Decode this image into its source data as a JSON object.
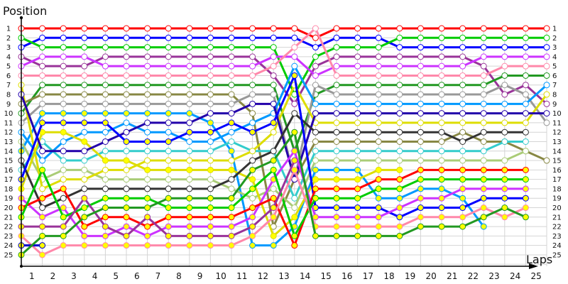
{
  "chart_data": {
    "type": "line",
    "ylabel": "Position",
    "xlabel": "Laps",
    "x": [
      0,
      1,
      2,
      3,
      4,
      5,
      6,
      7,
      8,
      9,
      10,
      11,
      12,
      13,
      14,
      15,
      16,
      17,
      18,
      19,
      20,
      21,
      22,
      23,
      24,
      25
    ],
    "x_tick_labels": [
      "1",
      "2",
      "3",
      "4",
      "5",
      "6",
      "7",
      "8",
      "9",
      "10",
      "11",
      "12",
      "13",
      "14",
      "15",
      "16",
      "17",
      "18",
      "19",
      "20",
      "21",
      "22",
      "23",
      "24",
      "25"
    ],
    "y_tick_labels": [
      "1",
      "2",
      "3",
      "4",
      "5",
      "6",
      "7",
      "8",
      "9",
      "10",
      "11",
      "12",
      "13",
      "14",
      "15",
      "16",
      "17",
      "18",
      "19",
      "20",
      "21",
      "22",
      "23",
      "24",
      "25"
    ],
    "ylim": [
      1,
      25
    ],
    "y_inverted": true,
    "grid": true,
    "legend": "none",
    "series": [
      {
        "color": "#ff0000",
        "marker": "#ffffff",
        "values": [
          1,
          1,
          1,
          1,
          1,
          1,
          1,
          1,
          1,
          1,
          1,
          1,
          1,
          1,
          2,
          1,
          1,
          1,
          1,
          1,
          1,
          1,
          1,
          1,
          1,
          1
        ]
      },
      {
        "color": "#0000ff",
        "marker": "#ffffff",
        "values": [
          3,
          2,
          2,
          2,
          2,
          2,
          2,
          2,
          2,
          2,
          2,
          2,
          2,
          2,
          3,
          2,
          2,
          2,
          3,
          3,
          3,
          3,
          3,
          3,
          3,
          3
        ]
      },
      {
        "color": "#00cc00",
        "marker": "#ffffff",
        "values": [
          2,
          3,
          3,
          3,
          3,
          3,
          3,
          3,
          3,
          3,
          3,
          3,
          3,
          8,
          4,
          3,
          3,
          3,
          2,
          2,
          2,
          2,
          2,
          2,
          2,
          2
        ]
      },
      {
        "color": "#993399",
        "marker": "#ffffff",
        "values": [
          4,
          5,
          5,
          5,
          4,
          4,
          4,
          4,
          4,
          4,
          4,
          4,
          6,
          9,
          5,
          4,
          4,
          4,
          4,
          4,
          4,
          4,
          5,
          8,
          7,
          9
        ]
      },
      {
        "color": "#cc33ff",
        "marker": "#ffffff",
        "values": [
          5,
          4,
          4,
          4,
          5,
          5,
          5,
          5,
          5,
          5,
          5,
          5,
          4,
          4,
          6,
          5,
          5,
          5,
          5,
          5,
          5,
          5,
          4,
          4,
          4,
          4
        ]
      },
      {
        "color": "#ff88aa",
        "marker": "#ffffff",
        "values": [
          6,
          6,
          6,
          6,
          6,
          6,
          6,
          6,
          6,
          6,
          6,
          6,
          5,
          3,
          1,
          6,
          6,
          6,
          6,
          6,
          6,
          6,
          6,
          5,
          5,
          5
        ]
      },
      {
        "color": "#229922",
        "marker": "#ffffff",
        "values": [
          10,
          7,
          7,
          7,
          7,
          7,
          7,
          7,
          7,
          7,
          7,
          7,
          7,
          14,
          8,
          7,
          7,
          7,
          7,
          7,
          7,
          7,
          7,
          6,
          6,
          6
        ]
      },
      {
        "color": "#888844",
        "marker": "#ffffff",
        "values": [
          9,
          8,
          8,
          8,
          8,
          8,
          8,
          8,
          8,
          8,
          8,
          10,
          22,
          17,
          13,
          13,
          13,
          13,
          13,
          13,
          13,
          12,
          13,
          13,
          14,
          15
        ]
      },
      {
        "color": "#999999",
        "marker": "#ffffff",
        "values": [
          11,
          9,
          9,
          9,
          9,
          9,
          9,
          9,
          9,
          9,
          9,
          8,
          8,
          17,
          7,
          8,
          8,
          8,
          8,
          8,
          8,
          8,
          8,
          7,
          8,
          11
        ]
      },
      {
        "color": "#0099ff",
        "marker": "#ffffff",
        "values": [
          12,
          15,
          13,
          12,
          12,
          11,
          12,
          12,
          13,
          13,
          12,
          11,
          10,
          5,
          9,
          9,
          9,
          9,
          9,
          9,
          9,
          9,
          9,
          9,
          9,
          7
        ]
      },
      {
        "color": "#0099ff",
        "marker": "#ffff00",
        "values": [
          14,
          10,
          10,
          10,
          10,
          10,
          10,
          10,
          10,
          11,
          14,
          24,
          24,
          22,
          16,
          16,
          16,
          19,
          19,
          18,
          18,
          19,
          22,
          null,
          null,
          null
        ]
      },
      {
        "color": "#33cccc",
        "marker": "#ffffff",
        "values": [
          16,
          13,
          15,
          15,
          14,
          14,
          14,
          14,
          14,
          14,
          13,
          14,
          14,
          19,
          14,
          14,
          14,
          14,
          14,
          14,
          14,
          14,
          14,
          13,
          13,
          null
        ]
      },
      {
        "color": "#aacc77",
        "marker": "#ffffff",
        "values": [
          13,
          17,
          16,
          16,
          17,
          17,
          17,
          17,
          17,
          17,
          18,
          19,
          18,
          20,
          15,
          15,
          15,
          15,
          15,
          15,
          15,
          15,
          15,
          15,
          14,
          null
        ]
      },
      {
        "color": "#dddd00",
        "marker": "#ffffff",
        "values": [
          7,
          18,
          17,
          17,
          16,
          16,
          15,
          15,
          15,
          15,
          15,
          14,
          12,
          7,
          11,
          11,
          11,
          11,
          11,
          11,
          11,
          11,
          11,
          11,
          11,
          8
        ]
      },
      {
        "color": "#dddd00",
        "marker": "#ffff00",
        "values": [
          18,
          12,
          12,
          13,
          15,
          15,
          16,
          16,
          16,
          16,
          16,
          17,
          23,
          21,
          17,
          17,
          17,
          16,
          16,
          null,
          null,
          null,
          null,
          null,
          null,
          null
        ]
      },
      {
        "color": "#2200aa",
        "marker": "#ffffff",
        "values": [
          8,
          14,
          14,
          14,
          13,
          12,
          11,
          11,
          11,
          10,
          10,
          9,
          9,
          17,
          10,
          10,
          10,
          10,
          10,
          10,
          10,
          10,
          10,
          10,
          10,
          10
        ]
      },
      {
        "color": "#333333",
        "marker": "#ffffff",
        "values": [
          15,
          20,
          19,
          18,
          18,
          18,
          18,
          18,
          18,
          18,
          17,
          15,
          14,
          10,
          12,
          12,
          12,
          12,
          12,
          12,
          12,
          13,
          12,
          12,
          12,
          null
        ]
      },
      {
        "color": "#0000ff",
        "marker": "#ffff00",
        "values": [
          17,
          11,
          11,
          11,
          11,
          13,
          13,
          13,
          12,
          12,
          11,
          12,
          11,
          6,
          20,
          20,
          20,
          20,
          21,
          20,
          20,
          20,
          19,
          19,
          19,
          null
        ]
      },
      {
        "color": "#cc33ff",
        "marker": "#ffff00",
        "values": [
          19,
          21,
          20,
          23,
          23,
          22,
          23,
          22,
          22,
          22,
          22,
          21,
          17,
          14,
          21,
          21,
          21,
          21,
          20,
          19,
          19,
          18,
          18,
          18,
          18,
          null
        ]
      },
      {
        "color": "#ff0000",
        "marker": "#ffff00",
        "values": [
          20,
          19,
          18,
          22,
          21,
          21,
          22,
          21,
          21,
          21,
          21,
          20,
          19,
          24,
          18,
          18,
          18,
          17,
          17,
          16,
          16,
          16,
          16,
          16,
          16,
          null
        ]
      },
      {
        "color": "#00cc00",
        "marker": "#ffff00",
        "values": [
          21,
          16,
          21,
          20,
          19,
          19,
          19,
          20,
          20,
          20,
          20,
          18,
          16,
          23,
          19,
          19,
          19,
          18,
          18,
          17,
          17,
          17,
          17,
          17,
          17,
          null
        ]
      },
      {
        "color": "#993399",
        "marker": "#ffff00",
        "values": [
          22,
          22,
          22,
          19,
          22,
          23,
          21,
          23,
          23,
          23,
          23,
          22,
          20,
          15,
          null,
          null,
          null,
          null,
          null,
          null,
          null,
          null,
          null,
          null,
          null,
          null
        ]
      },
      {
        "color": "#ff88aa",
        "marker": "#ffff00",
        "values": [
          23,
          25,
          24,
          24,
          24,
          24,
          24,
          24,
          24,
          24,
          24,
          23,
          21,
          16,
          22,
          22,
          22,
          22,
          22,
          21,
          21,
          21,
          20,
          21,
          20,
          null
        ]
      },
      {
        "color": "#0000cc",
        "marker": "#ffff00",
        "values": [
          24,
          24,
          null,
          null,
          null,
          null,
          null,
          null,
          null,
          null,
          null,
          null,
          null,
          null,
          null,
          null,
          null,
          null,
          null,
          null,
          null,
          null,
          null,
          null,
          null,
          null
        ]
      },
      {
        "color": "#229922",
        "marker": "#ffff00",
        "values": [
          25,
          23,
          23,
          21,
          20,
          20,
          20,
          19,
          19,
          19,
          19,
          16,
          15,
          12,
          23,
          23,
          23,
          23,
          23,
          22,
          22,
          22,
          21,
          20,
          21,
          null
        ]
      }
    ]
  }
}
